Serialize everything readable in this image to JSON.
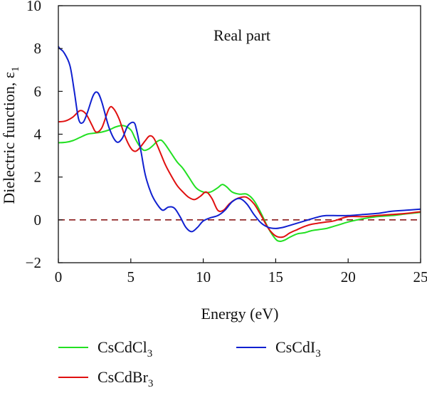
{
  "chart_data": {
    "type": "line",
    "annotation": "Real part",
    "xlabel": "Energy (eV)",
    "ylabel": "Dielectric function, ε",
    "ylabel_subscript": "1",
    "xlim": [
      0,
      25
    ],
    "ylim": [
      -2,
      10
    ],
    "xticks": [
      0,
      5,
      10,
      15,
      20,
      25
    ],
    "yticks": [
      -2,
      0,
      2,
      4,
      6,
      8,
      10
    ],
    "xtick_labels": [
      "0",
      "5",
      "10",
      "15",
      "20",
      "25"
    ],
    "ytick_labels": [
      "−2",
      "0",
      "2",
      "4",
      "6",
      "8",
      "10"
    ],
    "reference_line": {
      "y": 0,
      "style": "dashed",
      "color": "#8b1a1a"
    },
    "legend_placement": "bottom",
    "series": [
      {
        "name": "CsCdCl",
        "name_subscript": "3",
        "color": "#22e022",
        "x": [
          0,
          0.5,
          1,
          1.5,
          2,
          2.5,
          3,
          3.5,
          4,
          4.5,
          5,
          5.3,
          5.6,
          5.9,
          6.2,
          6.5,
          6.8,
          7.1,
          7.4,
          7.8,
          8.2,
          8.6,
          9,
          9.5,
          10,
          10.5,
          11,
          11.3,
          11.6,
          12,
          12.5,
          13,
          13.5,
          14,
          14.5,
          15,
          15.3,
          15.6,
          16,
          16.5,
          17,
          17.5,
          18,
          18.5,
          19,
          19.5,
          20,
          21,
          22,
          23,
          24,
          25
        ],
        "y": [
          3.6,
          3.62,
          3.7,
          3.85,
          4.0,
          4.05,
          4.1,
          4.2,
          4.35,
          4.4,
          4.2,
          3.8,
          3.45,
          3.25,
          3.3,
          3.45,
          3.65,
          3.72,
          3.5,
          3.1,
          2.7,
          2.4,
          2.0,
          1.5,
          1.3,
          1.3,
          1.5,
          1.65,
          1.55,
          1.3,
          1.2,
          1.2,
          0.9,
          0.3,
          -0.4,
          -0.9,
          -1.0,
          -0.95,
          -0.8,
          -0.65,
          -0.6,
          -0.5,
          -0.45,
          -0.4,
          -0.3,
          -0.2,
          -0.1,
          0.05,
          0.15,
          0.2,
          0.28,
          0.35
        ]
      },
      {
        "name": "CsCdBr",
        "name_subscript": "3",
        "color": "#e01010",
        "x": [
          0,
          0.5,
          1,
          1.5,
          1.9,
          2.3,
          2.6,
          3.0,
          3.5,
          3.8,
          4.2,
          4.6,
          5.0,
          5.3,
          5.6,
          6.0,
          6.3,
          6.6,
          7.0,
          7.4,
          7.8,
          8.2,
          8.6,
          9.0,
          9.4,
          9.8,
          10.2,
          10.6,
          11.0,
          11.4,
          11.8,
          12.2,
          12.6,
          13.0,
          13.5,
          14,
          14.5,
          15,
          15.5,
          16,
          16.5,
          17,
          17.5,
          18,
          18.5,
          19,
          20,
          21,
          22,
          23,
          24,
          25
        ],
        "y": [
          4.58,
          4.62,
          4.8,
          5.1,
          4.95,
          4.45,
          4.1,
          4.3,
          5.2,
          5.2,
          4.7,
          3.9,
          3.35,
          3.2,
          3.35,
          3.7,
          3.92,
          3.8,
          3.2,
          2.55,
          2.05,
          1.6,
          1.3,
          1.05,
          0.95,
          1.1,
          1.3,
          1.0,
          0.45,
          0.45,
          0.75,
          0.95,
          1.05,
          1.05,
          0.75,
          0.2,
          -0.4,
          -0.75,
          -0.8,
          -0.6,
          -0.45,
          -0.3,
          -0.2,
          -0.15,
          -0.1,
          -0.05,
          0.15,
          0.15,
          0.2,
          0.25,
          0.3,
          0.38
        ]
      },
      {
        "name": "CsCdI",
        "name_subscript": "3",
        "color": "#1020d0",
        "x": [
          0,
          0.1,
          0.4,
          0.8,
          1.1,
          1.4,
          1.7,
          2.0,
          2.4,
          2.7,
          3.0,
          3.5,
          4.0,
          4.4,
          4.8,
          5.2,
          5.4,
          5.7,
          6.0,
          6.4,
          6.8,
          7.2,
          7.6,
          8.0,
          8.4,
          8.8,
          9.2,
          9.6,
          10.0,
          10.5,
          11.0,
          11.5,
          12.0,
          12.5,
          13.0,
          13.5,
          14,
          14.5,
          15,
          15.5,
          16,
          17,
          18,
          18.5,
          19,
          20,
          21,
          22,
          23,
          24,
          25
        ],
        "y": [
          8.1,
          8.0,
          7.8,
          7.2,
          6.0,
          4.7,
          4.55,
          5.0,
          5.8,
          5.95,
          5.5,
          4.3,
          3.65,
          3.8,
          4.4,
          4.55,
          4.2,
          3.2,
          2.1,
          1.25,
          0.75,
          0.45,
          0.6,
          0.55,
          0.15,
          -0.35,
          -0.55,
          -0.35,
          -0.05,
          0.1,
          0.2,
          0.45,
          0.85,
          1.0,
          0.75,
          0.25,
          -0.15,
          -0.35,
          -0.4,
          -0.35,
          -0.25,
          -0.05,
          0.15,
          0.2,
          0.2,
          0.2,
          0.25,
          0.3,
          0.4,
          0.45,
          0.5
        ]
      }
    ]
  }
}
